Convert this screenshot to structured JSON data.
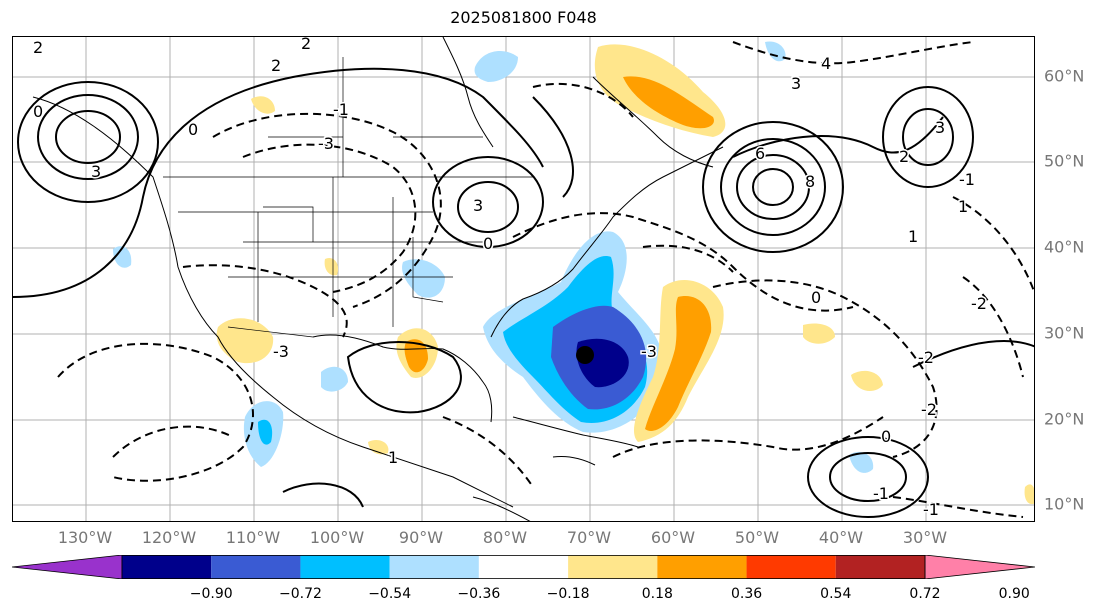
{
  "title": "2025081800 F048",
  "lon_labels": [
    "130°W",
    "120°W",
    "110°W",
    "100°W",
    "90°W",
    "80°W",
    "70°W",
    "60°W",
    "50°W",
    "40°W",
    "30°W"
  ],
  "lat_labels": [
    "60°N",
    "50°N",
    "40°N",
    "30°N",
    "20°N",
    "10°N"
  ],
  "colorbar": {
    "extend": "both",
    "colors": [
      "#9932cc",
      "#00008b",
      "#3a5bd3",
      "#00bfff",
      "#aee0ff",
      "#ffffff",
      "#ffe68c",
      "#ff9f00",
      "#ff3a00",
      "#b22222",
      "#ff80a8"
    ],
    "ticks": [
      "−0.90",
      "−0.72",
      "−0.54",
      "−0.36",
      "−0.18",
      "0.18",
      "0.36",
      "0.54",
      "0.72",
      "0.90"
    ]
  },
  "contour_labels": [
    "2",
    "2",
    "2",
    "3",
    "3",
    "6",
    "8",
    "4",
    "3",
    "3",
    "2",
    "1",
    "1",
    "1",
    "0",
    "0",
    "0",
    "0",
    "0",
    "-3",
    "-3",
    "-2",
    "-2",
    "-3",
    "-1",
    "-1",
    "-1",
    "-2",
    "-1"
  ],
  "colors": {
    "grid": "#b0b0b0",
    "coast": "#000000",
    "label": "#777777"
  }
}
